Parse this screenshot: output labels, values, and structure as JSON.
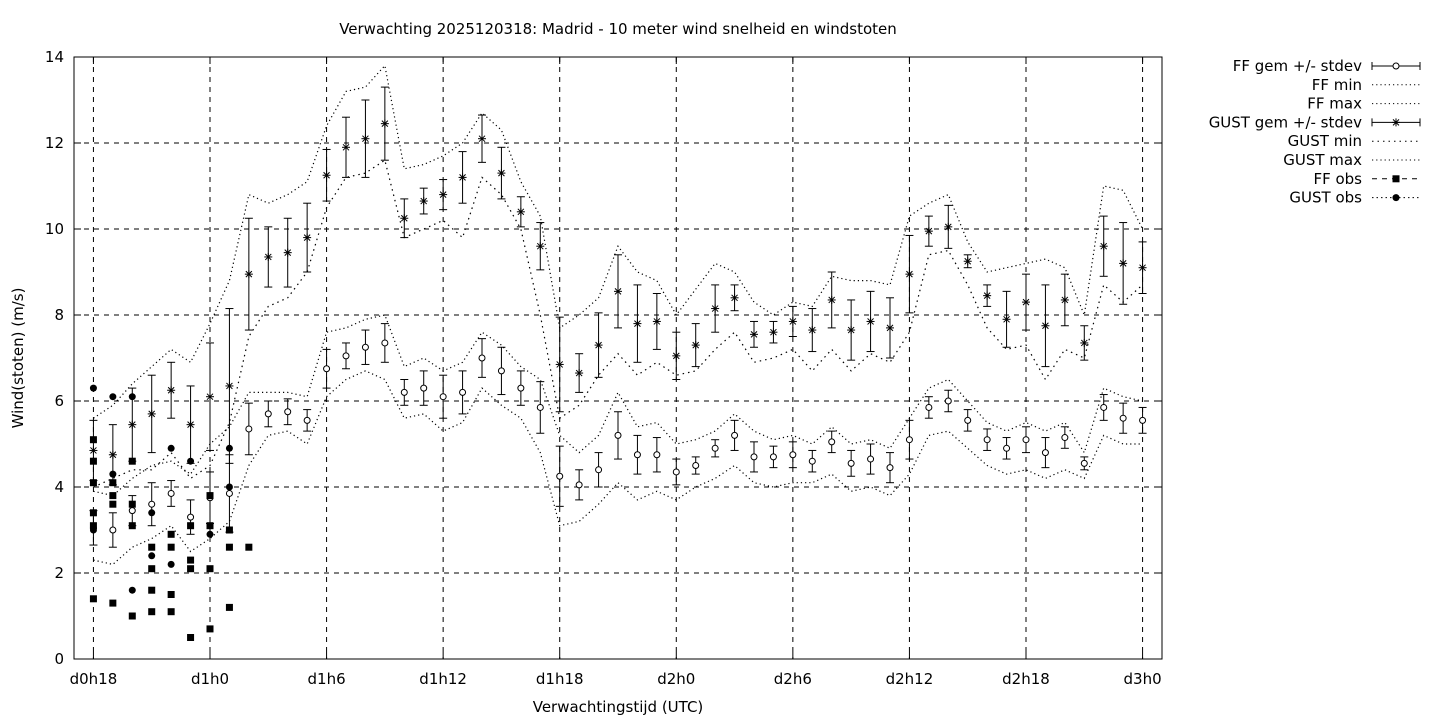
{
  "chart_data": {
    "type": "line",
    "title": "Verwachting 2025120318: Madrid - 10 meter wind snelheid en windstoten",
    "xlabel": "Verwachtingstijd (UTC)",
    "ylabel": "Wind(stoten) (m/s)",
    "ylim": [
      0,
      14
    ],
    "xlim": [
      -1,
      55
    ],
    "yticks": [
      0,
      2,
      4,
      6,
      8,
      10,
      12,
      14
    ],
    "xticks": [
      {
        "v": 0,
        "label": "d0h18"
      },
      {
        "v": 6,
        "label": "d1h0"
      },
      {
        "v": 12,
        "label": "d1h6"
      },
      {
        "v": 18,
        "label": "d1h12"
      },
      {
        "v": 24,
        "label": "d1h18"
      },
      {
        "v": 30,
        "label": "d2h0"
      },
      {
        "v": 36,
        "label": "d2h6"
      },
      {
        "v": 42,
        "label": "d2h12"
      },
      {
        "v": 48,
        "label": "d2h18"
      },
      {
        "v": 54,
        "label": "d3h0"
      }
    ],
    "grid": true,
    "legend_position": "right-outside",
    "legend": [
      "FF gem +/- stdev",
      "FF min",
      "FF max",
      "GUST gem +/- stdev",
      "GUST min",
      "GUST max",
      "FF obs",
      "GUST obs"
    ],
    "ff_x": [
      0,
      1,
      2,
      3,
      4,
      5,
      6,
      7,
      8,
      9,
      10,
      11,
      12,
      13,
      14,
      15,
      16,
      17,
      18,
      19,
      20,
      21,
      22,
      23,
      24,
      25,
      26,
      27,
      28,
      29,
      30,
      31,
      32,
      33,
      34,
      35,
      36,
      37,
      38,
      39,
      40,
      41,
      42,
      43,
      44,
      45,
      46,
      47,
      48,
      49,
      50,
      51,
      52,
      53,
      54
    ],
    "ff_mean": [
      3.05,
      3.0,
      3.45,
      3.6,
      3.85,
      3.3,
      3.75,
      3.85,
      5.35,
      5.7,
      5.75,
      5.55,
      6.75,
      7.05,
      7.25,
      7.35,
      6.2,
      6.3,
      6.1,
      6.2,
      7.0,
      6.7,
      6.3,
      5.85,
      4.25,
      4.05,
      4.4,
      5.2,
      4.75,
      4.75,
      4.35,
      4.5,
      4.9,
      5.2,
      4.7,
      4.7,
      4.75,
      4.6,
      5.05,
      4.55,
      4.65,
      4.45,
      5.1,
      5.85,
      6.0,
      5.55,
      5.1,
      4.9,
      5.1,
      4.8,
      5.15,
      4.55,
      5.85,
      5.6,
      5.55
    ],
    "ff_sd": [
      0.4,
      0.4,
      0.35,
      0.5,
      0.3,
      0.4,
      0.6,
      0.9,
      0.6,
      0.3,
      0.3,
      0.25,
      0.45,
      0.3,
      0.4,
      0.45,
      0.3,
      0.4,
      0.5,
      0.5,
      0.45,
      0.55,
      0.4,
      0.6,
      0.7,
      0.35,
      0.4,
      0.55,
      0.45,
      0.4,
      0.3,
      0.2,
      0.2,
      0.35,
      0.35,
      0.25,
      0.3,
      0.25,
      0.25,
      0.3,
      0.35,
      0.35,
      0.45,
      0.25,
      0.25,
      0.25,
      0.25,
      0.25,
      0.3,
      0.35,
      0.25,
      0.15,
      0.3,
      0.35,
      0.3
    ],
    "ff_min": [
      2.3,
      2.2,
      2.6,
      2.8,
      3.1,
      2.5,
      2.8,
      3.2,
      4.5,
      5.2,
      5.3,
      5.0,
      6.1,
      6.5,
      6.7,
      6.5,
      5.6,
      5.7,
      5.3,
      5.5,
      6.3,
      5.9,
      5.6,
      4.8,
      3.1,
      3.2,
      3.6,
      4.1,
      3.7,
      3.9,
      3.7,
      4.0,
      4.2,
      4.5,
      4.1,
      4.0,
      4.1,
      4.1,
      4.3,
      3.9,
      4.0,
      3.8,
      4.3,
      5.2,
      5.3,
      4.9,
      4.5,
      4.3,
      4.4,
      4.2,
      4.4,
      4.2,
      5.2,
      5.0,
      5.0
    ],
    "ff_max": [
      3.9,
      3.8,
      4.2,
      4.5,
      4.6,
      4.3,
      5.0,
      5.4,
      6.2,
      6.2,
      6.2,
      6.1,
      7.6,
      7.7,
      7.9,
      8.0,
      6.8,
      7.0,
      6.7,
      6.9,
      7.6,
      7.3,
      6.8,
      6.5,
      5.2,
      4.8,
      5.2,
      6.2,
      5.4,
      5.5,
      5.0,
      5.1,
      5.3,
      5.7,
      5.3,
      5.1,
      5.2,
      5.0,
      5.4,
      5.0,
      5.1,
      4.9,
      5.6,
      6.3,
      6.5,
      6.0,
      5.5,
      5.3,
      5.5,
      5.3,
      5.5,
      4.8,
      6.3,
      6.1,
      6.0
    ],
    "gust_mean": [
      4.85,
      4.75,
      5.45,
      5.7,
      6.25,
      5.45,
      6.1,
      6.35,
      8.95,
      9.35,
      9.45,
      9.8,
      11.25,
      11.9,
      12.1,
      12.45,
      10.25,
      10.65,
      10.8,
      11.2,
      12.1,
      11.3,
      10.4,
      9.6,
      6.85,
      6.65,
      7.3,
      8.55,
      7.8,
      7.85,
      7.05,
      7.3,
      8.15,
      8.4,
      7.55,
      7.6,
      7.85,
      7.65,
      8.35,
      7.65,
      7.85,
      7.7,
      8.95,
      9.95,
      10.05,
      9.25,
      8.45,
      7.9,
      8.3,
      7.75,
      8.35,
      7.35,
      9.6,
      9.2,
      9.1
    ],
    "gust_sd": [
      0.7,
      0.7,
      0.85,
      0.9,
      0.65,
      0.9,
      1.25,
      1.8,
      1.3,
      0.7,
      0.8,
      0.8,
      0.6,
      0.7,
      0.9,
      0.85,
      0.45,
      0.3,
      0.35,
      0.6,
      0.55,
      0.6,
      0.35,
      0.55,
      1.1,
      0.45,
      0.75,
      0.85,
      0.9,
      0.65,
      0.55,
      0.5,
      0.55,
      0.3,
      0.3,
      0.25,
      0.35,
      0.5,
      0.65,
      0.7,
      0.7,
      0.7,
      0.9,
      0.35,
      0.5,
      0.15,
      0.25,
      0.65,
      0.65,
      0.95,
      0.6,
      0.4,
      0.7,
      0.95,
      0.6
    ],
    "gust_min": [
      4.0,
      4.2,
      4.4,
      4.4,
      4.8,
      4.2,
      4.5,
      5.5,
      7.5,
      8.2,
      8.4,
      9.0,
      10.5,
      11.2,
      11.3,
      11.6,
      9.8,
      10.0,
      10.2,
      9.8,
      11.2,
      10.8,
      10.0,
      8.0,
      5.6,
      5.9,
      6.6,
      7.1,
      6.6,
      6.9,
      6.6,
      6.7,
      7.2,
      7.6,
      6.9,
      7.0,
      7.2,
      6.7,
      7.2,
      6.7,
      7.1,
      6.9,
      7.6,
      9.4,
      9.5,
      8.7,
      7.7,
      7.2,
      7.3,
      6.5,
      7.2,
      7.0,
      8.7,
      8.3,
      8.7
    ],
    "gust_max": [
      5.6,
      5.9,
      6.4,
      6.8,
      7.2,
      6.9,
      7.8,
      8.8,
      10.8,
      10.6,
      10.8,
      11.1,
      12.4,
      13.2,
      13.3,
      13.8,
      11.4,
      11.5,
      11.7,
      12.0,
      12.7,
      12.3,
      11.1,
      10.3,
      7.7,
      8.0,
      8.4,
      9.6,
      9.0,
      8.8,
      8.0,
      8.6,
      9.2,
      9.0,
      8.3,
      8.0,
      8.3,
      8.2,
      8.9,
      8.8,
      8.8,
      8.7,
      10.3,
      10.6,
      10.8,
      9.7,
      9.0,
      9.1,
      9.2,
      9.3,
      9.1,
      8.0,
      11.0,
      10.9,
      10.0
    ],
    "ff_obs": [
      [
        0,
        5.1
      ],
      [
        0,
        4.6
      ],
      [
        0,
        4.1
      ],
      [
        0,
        3.4
      ],
      [
        0,
        3.1
      ],
      [
        0,
        1.4
      ],
      [
        1,
        4.1
      ],
      [
        1,
        3.8
      ],
      [
        1,
        3.6
      ],
      [
        1,
        1.3
      ],
      [
        2,
        4.6
      ],
      [
        2,
        3.6
      ],
      [
        2,
        3.1
      ],
      [
        2,
        1.0
      ],
      [
        3,
        2.6
      ],
      [
        3,
        2.1
      ],
      [
        3,
        1.6
      ],
      [
        3,
        1.1
      ],
      [
        4,
        2.9
      ],
      [
        4,
        2.6
      ],
      [
        4,
        1.5
      ],
      [
        4,
        1.1
      ],
      [
        5,
        3.1
      ],
      [
        5,
        2.3
      ],
      [
        5,
        2.1
      ],
      [
        5,
        0.5
      ],
      [
        6,
        3.8
      ],
      [
        6,
        3.1
      ],
      [
        6,
        2.1
      ],
      [
        6,
        0.7
      ],
      [
        7,
        3.0
      ],
      [
        7,
        2.6
      ],
      [
        7,
        1.2
      ],
      [
        8,
        2.6
      ]
    ],
    "gust_obs": [
      [
        0,
        6.3
      ],
      [
        0,
        3.0
      ],
      [
        1,
        6.1
      ],
      [
        1,
        4.3
      ],
      [
        2,
        6.1
      ],
      [
        2,
        1.6
      ],
      [
        3,
        3.4
      ],
      [
        3,
        2.4
      ],
      [
        4,
        4.9
      ],
      [
        4,
        2.2
      ],
      [
        5,
        4.6
      ],
      [
        6,
        3.8
      ],
      [
        6,
        2.9
      ],
      [
        7,
        4.9
      ],
      [
        7,
        4.0
      ]
    ]
  }
}
